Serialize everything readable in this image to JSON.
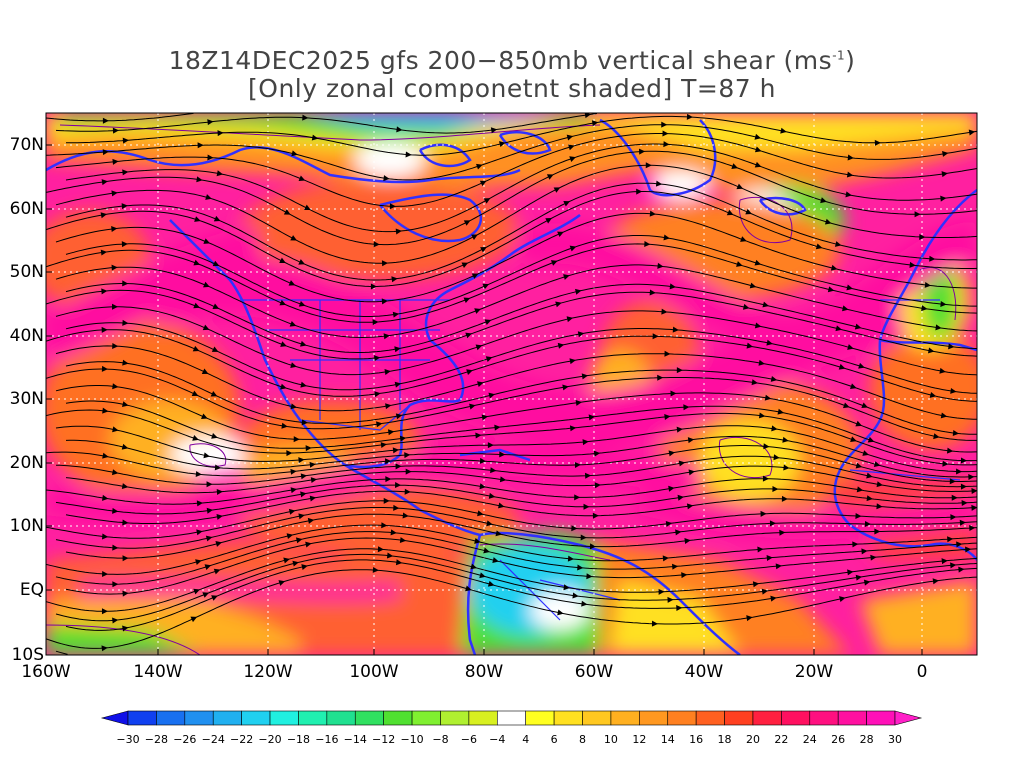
{
  "title": {
    "line1": "18Z14DEC2025 gfs 200−850mb vertical shear (ms",
    "line1_sup": "-1",
    "line1_end": ")",
    "line2": "[Only zonal componetnt shaded] T=87 h"
  },
  "axes": {
    "y_labels": [
      "70N",
      "60N",
      "50N",
      "40N",
      "30N",
      "20N",
      "10N",
      "EQ",
      "10S"
    ],
    "x_labels": [
      "160W",
      "140W",
      "120W",
      "100W",
      "80W",
      "60W",
      "40W",
      "20W",
      "0"
    ]
  },
  "colorbar": {
    "labels": [
      "−30",
      "−28",
      "−26",
      "−24",
      "−22",
      "−20",
      "−18",
      "−16",
      "−14",
      "−12",
      "−10",
      "−8",
      "−6",
      "−4",
      "4",
      "6",
      "8",
      "10",
      "12",
      "14",
      "16",
      "18",
      "20",
      "22",
      "24",
      "26",
      "28",
      "30"
    ],
    "colors": [
      "#1010e8",
      "#1040f0",
      "#1870f0",
      "#2090f0",
      "#20b0f0",
      "#20d0f0",
      "#20f0e0",
      "#20f0b0",
      "#20e090",
      "#30e060",
      "#50e030",
      "#80f030",
      "#b0f030",
      "#d8f020",
      "#ffffff",
      "#ffff20",
      "#ffe020",
      "#ffc820",
      "#ffb020",
      "#ff9820",
      "#ff8020",
      "#ff6020",
      "#ff4020",
      "#ff2040",
      "#ff1060",
      "#ff1080",
      "#ff10a0",
      "#ff10b8",
      "#ff20c8"
    ]
  },
  "palette": {
    "magenta": "#ff10a0",
    "pink": "#ff2080",
    "red": "#ff3030",
    "orange": "#ff8020",
    "yellow": "#ffe020",
    "white": "#ffffff",
    "green": "#50e030",
    "cyan": "#20d0f0",
    "coast": "#3030ff",
    "contour": "#8000a0",
    "streamline": "#000000"
  }
}
